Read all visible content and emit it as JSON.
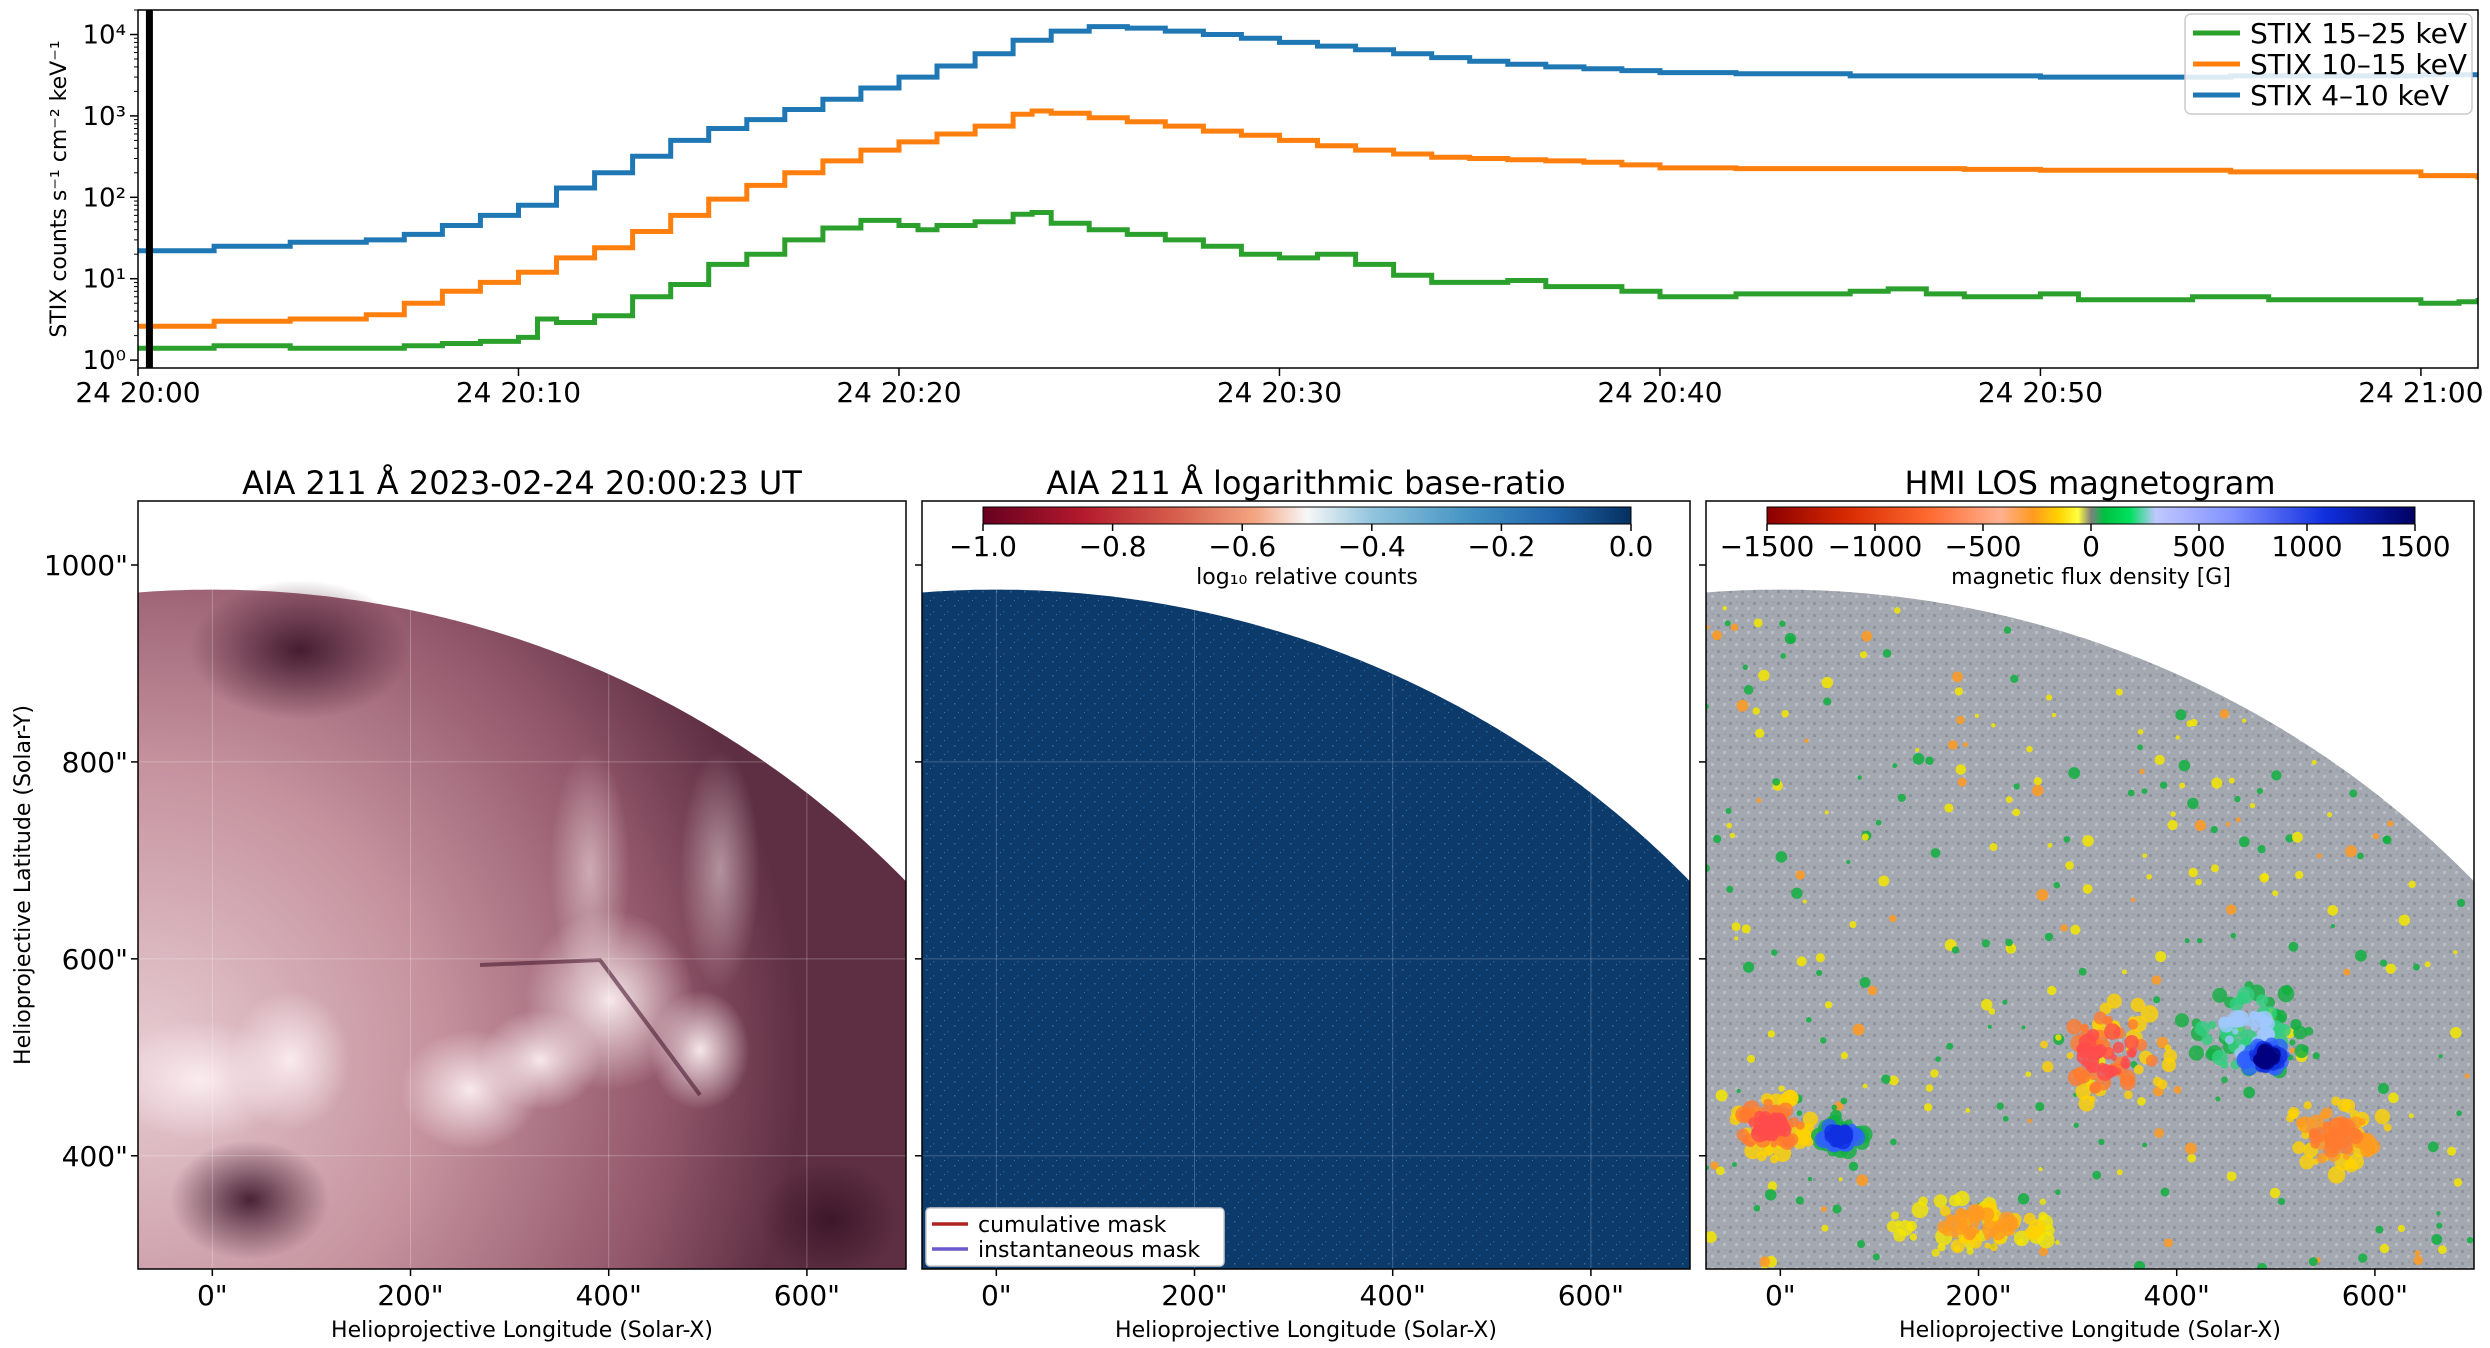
{
  "chart_data": [
    {
      "type": "line",
      "subtype": "step",
      "ylabel": "STIX counts s⁻¹ cm⁻² keV⁻¹",
      "yscale": "log",
      "ylim": [
        0.8,
        20000
      ],
      "x_unit": "minutes after 24 20:00",
      "xlim": [
        0,
        61.5
      ],
      "x_ticks": [
        0,
        10,
        20,
        30,
        40,
        50,
        60
      ],
      "x_tick_labels": [
        "24 20:00",
        "24 20:10",
        "24 20:20",
        "24 20:30",
        "24 20:40",
        "24 20:50",
        "24 21:00"
      ],
      "y_ticks": [
        1,
        10,
        100,
        1000,
        10000
      ],
      "y_tick_labels": [
        "10⁰",
        "10¹",
        "10²",
        "10³",
        "10⁴"
      ],
      "marker_line_x": 0.3,
      "legend_position": "top-right",
      "series": [
        {
          "name": "STIX 15–25 keV",
          "color": "#2ca02c",
          "x": [
            0,
            2,
            4,
            6,
            7,
            8,
            9,
            10,
            10.5,
            11,
            12,
            13,
            14,
            15,
            15.5,
            16,
            17,
            18,
            19,
            20,
            20.5,
            21,
            22,
            23,
            23.5,
            24,
            25,
            26,
            27,
            28,
            29,
            30,
            31,
            32,
            33,
            34,
            35,
            36,
            37,
            38,
            39,
            40,
            41,
            42,
            43,
            44,
            45,
            46,
            47,
            48,
            49,
            50,
            51,
            52,
            53,
            54,
            55,
            56,
            57,
            58,
            59,
            60,
            61,
            61.5
          ],
          "values": [
            1.4,
            1.5,
            1.4,
            1.4,
            1.5,
            1.6,
            1.7,
            1.9,
            3.2,
            2.9,
            3.5,
            6.0,
            8.5,
            15,
            15,
            20,
            30,
            42,
            52,
            45,
            40,
            45,
            50,
            62,
            65,
            48,
            40,
            35,
            30,
            25,
            20,
            18,
            20,
            15,
            11,
            9,
            9,
            9.5,
            8,
            8,
            7,
            6,
            6,
            6.5,
            6.5,
            6.5,
            7,
            7.5,
            6.5,
            6,
            6,
            6.5,
            5.5,
            5.5,
            5.5,
            6,
            6,
            5.5,
            5.5,
            5.5,
            5.5,
            5.0,
            5.2,
            5.8
          ]
        },
        {
          "name": "STIX 10–15 keV",
          "color": "#ff7f0e",
          "x": [
            0,
            2,
            4,
            6,
            7,
            8,
            9,
            10,
            11,
            12,
            13,
            14,
            15,
            16,
            17,
            18,
            19,
            20,
            21,
            22,
            23,
            23.5,
            24,
            25,
            26,
            27,
            28,
            29,
            30,
            31,
            32,
            33,
            34,
            35,
            36,
            37,
            38,
            39,
            40,
            42,
            45,
            48,
            50,
            55,
            60,
            61.5
          ],
          "values": [
            2.6,
            3.0,
            3.2,
            3.6,
            5.0,
            7.0,
            9.0,
            12,
            18,
            24,
            38,
            60,
            95,
            140,
            200,
            280,
            380,
            480,
            600,
            750,
            1050,
            1150,
            1080,
            950,
            850,
            750,
            650,
            580,
            500,
            430,
            380,
            340,
            310,
            300,
            290,
            280,
            270,
            250,
            230,
            225,
            225,
            220,
            215,
            205,
            185,
            165
          ]
        },
        {
          "name": "STIX 4–10 keV",
          "color": "#1f77b4",
          "x": [
            0,
            2,
            4,
            6,
            7,
            8,
            9,
            10,
            11,
            12,
            13,
            14,
            15,
            16,
            17,
            18,
            19,
            20,
            21,
            22,
            23,
            24,
            25,
            26,
            27,
            28,
            29,
            30,
            31,
            32,
            33,
            34,
            35,
            36,
            37,
            38,
            39,
            40,
            42,
            45,
            50,
            55,
            60,
            61.5
          ],
          "values": [
            22,
            25,
            28,
            30,
            35,
            45,
            60,
            80,
            130,
            200,
            320,
            500,
            700,
            900,
            1200,
            1600,
            2200,
            3000,
            4100,
            5800,
            8500,
            11000,
            12500,
            12000,
            11000,
            10000,
            9000,
            8000,
            7200,
            6500,
            5800,
            5200,
            4700,
            4300,
            4000,
            3800,
            3600,
            3400,
            3300,
            3100,
            3000,
            3100,
            3200,
            3200
          ]
        }
      ]
    },
    {
      "type": "heatmap",
      "title": "AIA 211 Å 2023-02-24 20:00:23 UT",
      "xlabel": "Helioprojective Longitude (Solar-X)",
      "ylabel": "Helioprojective Latitude (Solar-Y)",
      "xlim": [
        -75,
        700
      ],
      "ylim": [
        285,
        1065
      ],
      "x_ticks": [
        "0\"",
        "200\"",
        "400\"",
        "600\""
      ],
      "y_ticks": [
        "400\"",
        "600\"",
        "800\"",
        "1000\""
      ]
    },
    {
      "type": "heatmap",
      "title": "AIA 211 Å logarithmic base-ratio",
      "xlabel": "Helioprojective Longitude (Solar-X)",
      "xlim": [
        -75,
        700
      ],
      "ylim": [
        285,
        1065
      ],
      "x_ticks": [
        "0\"",
        "200\"",
        "400\"",
        "600\""
      ],
      "colorbar": {
        "label": "log₁₀ relative counts",
        "range": [
          -1.0,
          0.0
        ],
        "ticks": [
          "−1.0",
          "−0.8",
          "−0.6",
          "−0.4",
          "−0.2",
          "0.0"
        ]
      },
      "legend": [
        {
          "label": "cumulative mask",
          "color": "#b22222"
        },
        {
          "label": "instantaneous mask",
          "color": "#6a5acd"
        }
      ]
    },
    {
      "type": "heatmap",
      "title": "HMI LOS magnetogram",
      "xlabel": "Helioprojective Longitude (Solar-X)",
      "xlim": [
        -75,
        700
      ],
      "ylim": [
        285,
        1065
      ],
      "x_ticks": [
        "0\"",
        "200\"",
        "400\"",
        "600\""
      ],
      "colorbar": {
        "label": "magnetic flux density [G]",
        "range": [
          -1500,
          1500
        ],
        "ticks": [
          "−1500",
          "−1000",
          "−500",
          "0",
          "500",
          "1000",
          "1500"
        ]
      }
    }
  ]
}
